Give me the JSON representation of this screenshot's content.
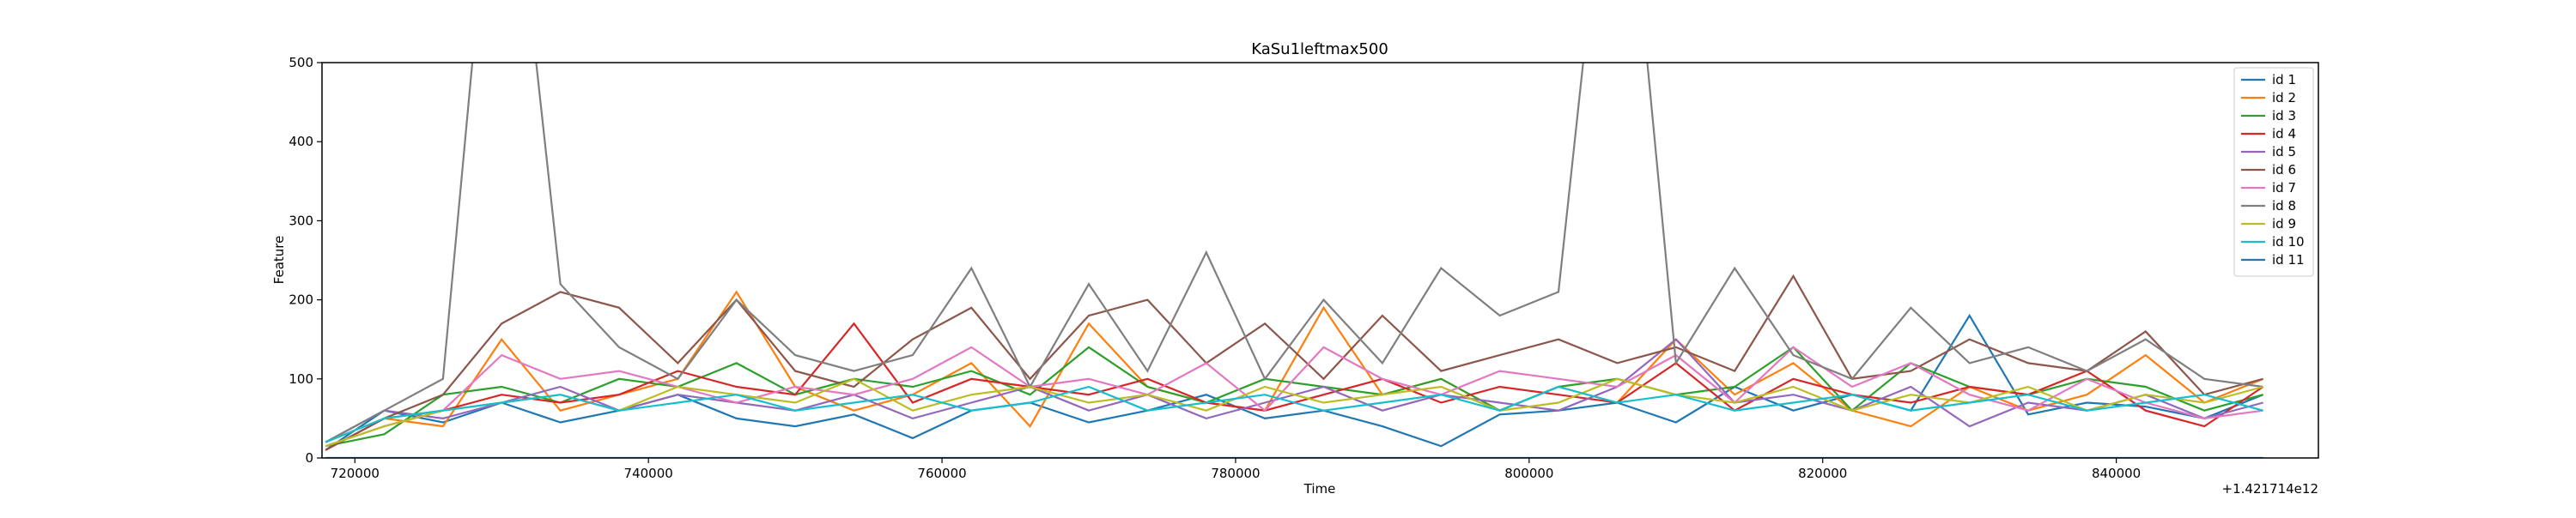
{
  "chart_data": {
    "type": "line",
    "title": "KaSu1leftmax500",
    "xlabel": "Time",
    "ylabel": "Feature",
    "x_offset_label": "+1.421714e12",
    "x": [
      718000,
      722000,
      726000,
      730000,
      734000,
      738000,
      742000,
      746000,
      750000,
      754000,
      758000,
      762000,
      766000,
      770000,
      774000,
      778000,
      782000,
      786000,
      790000,
      794000,
      798000,
      802000,
      806000,
      810000,
      814000,
      818000,
      822000,
      826000,
      830000,
      834000,
      838000,
      842000,
      846000,
      850000
    ],
    "xlim": [
      717760,
      853770
    ],
    "xticks": [
      720000,
      740000,
      760000,
      780000,
      800000,
      820000,
      840000
    ],
    "ylim": [
      0,
      500
    ],
    "yticks": [
      0,
      100,
      200,
      300,
      400,
      500
    ],
    "legend": "upper right",
    "series": [
      {
        "name": "id 1",
        "color": "#1f77b4",
        "values": [
          10,
          60,
          45,
          70,
          45,
          60,
          80,
          50,
          40,
          55,
          25,
          60,
          70,
          45,
          60,
          80,
          50,
          60,
          40,
          15,
          55,
          60,
          70,
          45,
          90,
          60,
          80,
          60,
          180,
          55,
          70,
          65,
          50,
          80
        ]
      },
      {
        "name": "id 2",
        "color": "#ff7f0e",
        "values": [
          20,
          50,
          40,
          150,
          60,
          80,
          100,
          210,
          90,
          60,
          80,
          120,
          40,
          170,
          90,
          70,
          60,
          190,
          80,
          100,
          60,
          90,
          70,
          150,
          80,
          120,
          60,
          40,
          90,
          60,
          80,
          130,
          70,
          100
        ]
      },
      {
        "name": "id 3",
        "color": "#2ca02c",
        "values": [
          15,
          30,
          80,
          90,
          70,
          100,
          90,
          120,
          80,
          100,
          90,
          110,
          80,
          140,
          90,
          70,
          100,
          90,
          80,
          100,
          60,
          90,
          100,
          80,
          90,
          140,
          60,
          120,
          90,
          80,
          100,
          90,
          60,
          80
        ]
      },
      {
        "name": "id 4",
        "color": "#d62728",
        "values": [
          10,
          50,
          60,
          80,
          70,
          80,
          110,
          90,
          80,
          170,
          70,
          100,
          90,
          80,
          100,
          70,
          60,
          80,
          100,
          70,
          90,
          80,
          70,
          120,
          60,
          100,
          80,
          70,
          90,
          80,
          110,
          60,
          40,
          90
        ]
      },
      {
        "name": "id 5",
        "color": "#9467bd",
        "values": [
          20,
          60,
          50,
          70,
          90,
          60,
          80,
          70,
          60,
          80,
          50,
          70,
          90,
          60,
          80,
          50,
          70,
          90,
          60,
          80,
          70,
          60,
          90,
          150,
          70,
          80,
          60,
          90,
          40,
          70,
          60,
          80,
          50,
          70
        ]
      },
      {
        "name": "id 6",
        "color": "#8c564b",
        "values": [
          10,
          50,
          80,
          170,
          210,
          190,
          120,
          200,
          110,
          90,
          150,
          190,
          100,
          180,
          200,
          120,
          170,
          100,
          180,
          110,
          130,
          150,
          120,
          140,
          110,
          230,
          100,
          110,
          150,
          120,
          110,
          160,
          80,
          100
        ]
      },
      {
        "name": "id 7",
        "color": "#e377c2",
        "values": [
          15,
          40,
          60,
          130,
          100,
          110,
          90,
          70,
          90,
          80,
          100,
          140,
          90,
          100,
          80,
          120,
          60,
          140,
          100,
          80,
          110,
          100,
          90,
          130,
          70,
          140,
          90,
          120,
          80,
          60,
          100,
          70,
          50,
          60
        ]
      },
      {
        "name": "id 8",
        "color": "#7f7f7f",
        "values": [
          20,
          60,
          100,
          900,
          220,
          140,
          100,
          200,
          130,
          110,
          130,
          240,
          90,
          220,
          110,
          260,
          100,
          200,
          120,
          240,
          180,
          210,
          900,
          120,
          240,
          130,
          100,
          190,
          120,
          140,
          110,
          150,
          100,
          90
        ]
      },
      {
        "name": "id 9",
        "color": "#bcbd22",
        "values": [
          15,
          40,
          60,
          70,
          80,
          60,
          90,
          80,
          70,
          100,
          60,
          80,
          90,
          70,
          80,
          60,
          90,
          70,
          80,
          90,
          60,
          70,
          100,
          80,
          70,
          90,
          60,
          80,
          70,
          90,
          60,
          80,
          70,
          90
        ]
      },
      {
        "name": "id 10",
        "color": "#17becf",
        "values": [
          20,
          50,
          60,
          70,
          80,
          60,
          70,
          80,
          60,
          70,
          80,
          60,
          70,
          90,
          60,
          70,
          80,
          60,
          70,
          80,
          60,
          90,
          70,
          80,
          60,
          70,
          80,
          60,
          70,
          80,
          60,
          70,
          80,
          60
        ]
      },
      {
        "name": "id 11",
        "color": "#1f77b4",
        "values": [
          0,
          0,
          0,
          0,
          0,
          0,
          0,
          0,
          0,
          0,
          0,
          0,
          0,
          0,
          0,
          0,
          0,
          0,
          0,
          0,
          0,
          0,
          0,
          0,
          0,
          0,
          0,
          0,
          0,
          0,
          0,
          0,
          0,
          0
        ]
      }
    ]
  }
}
